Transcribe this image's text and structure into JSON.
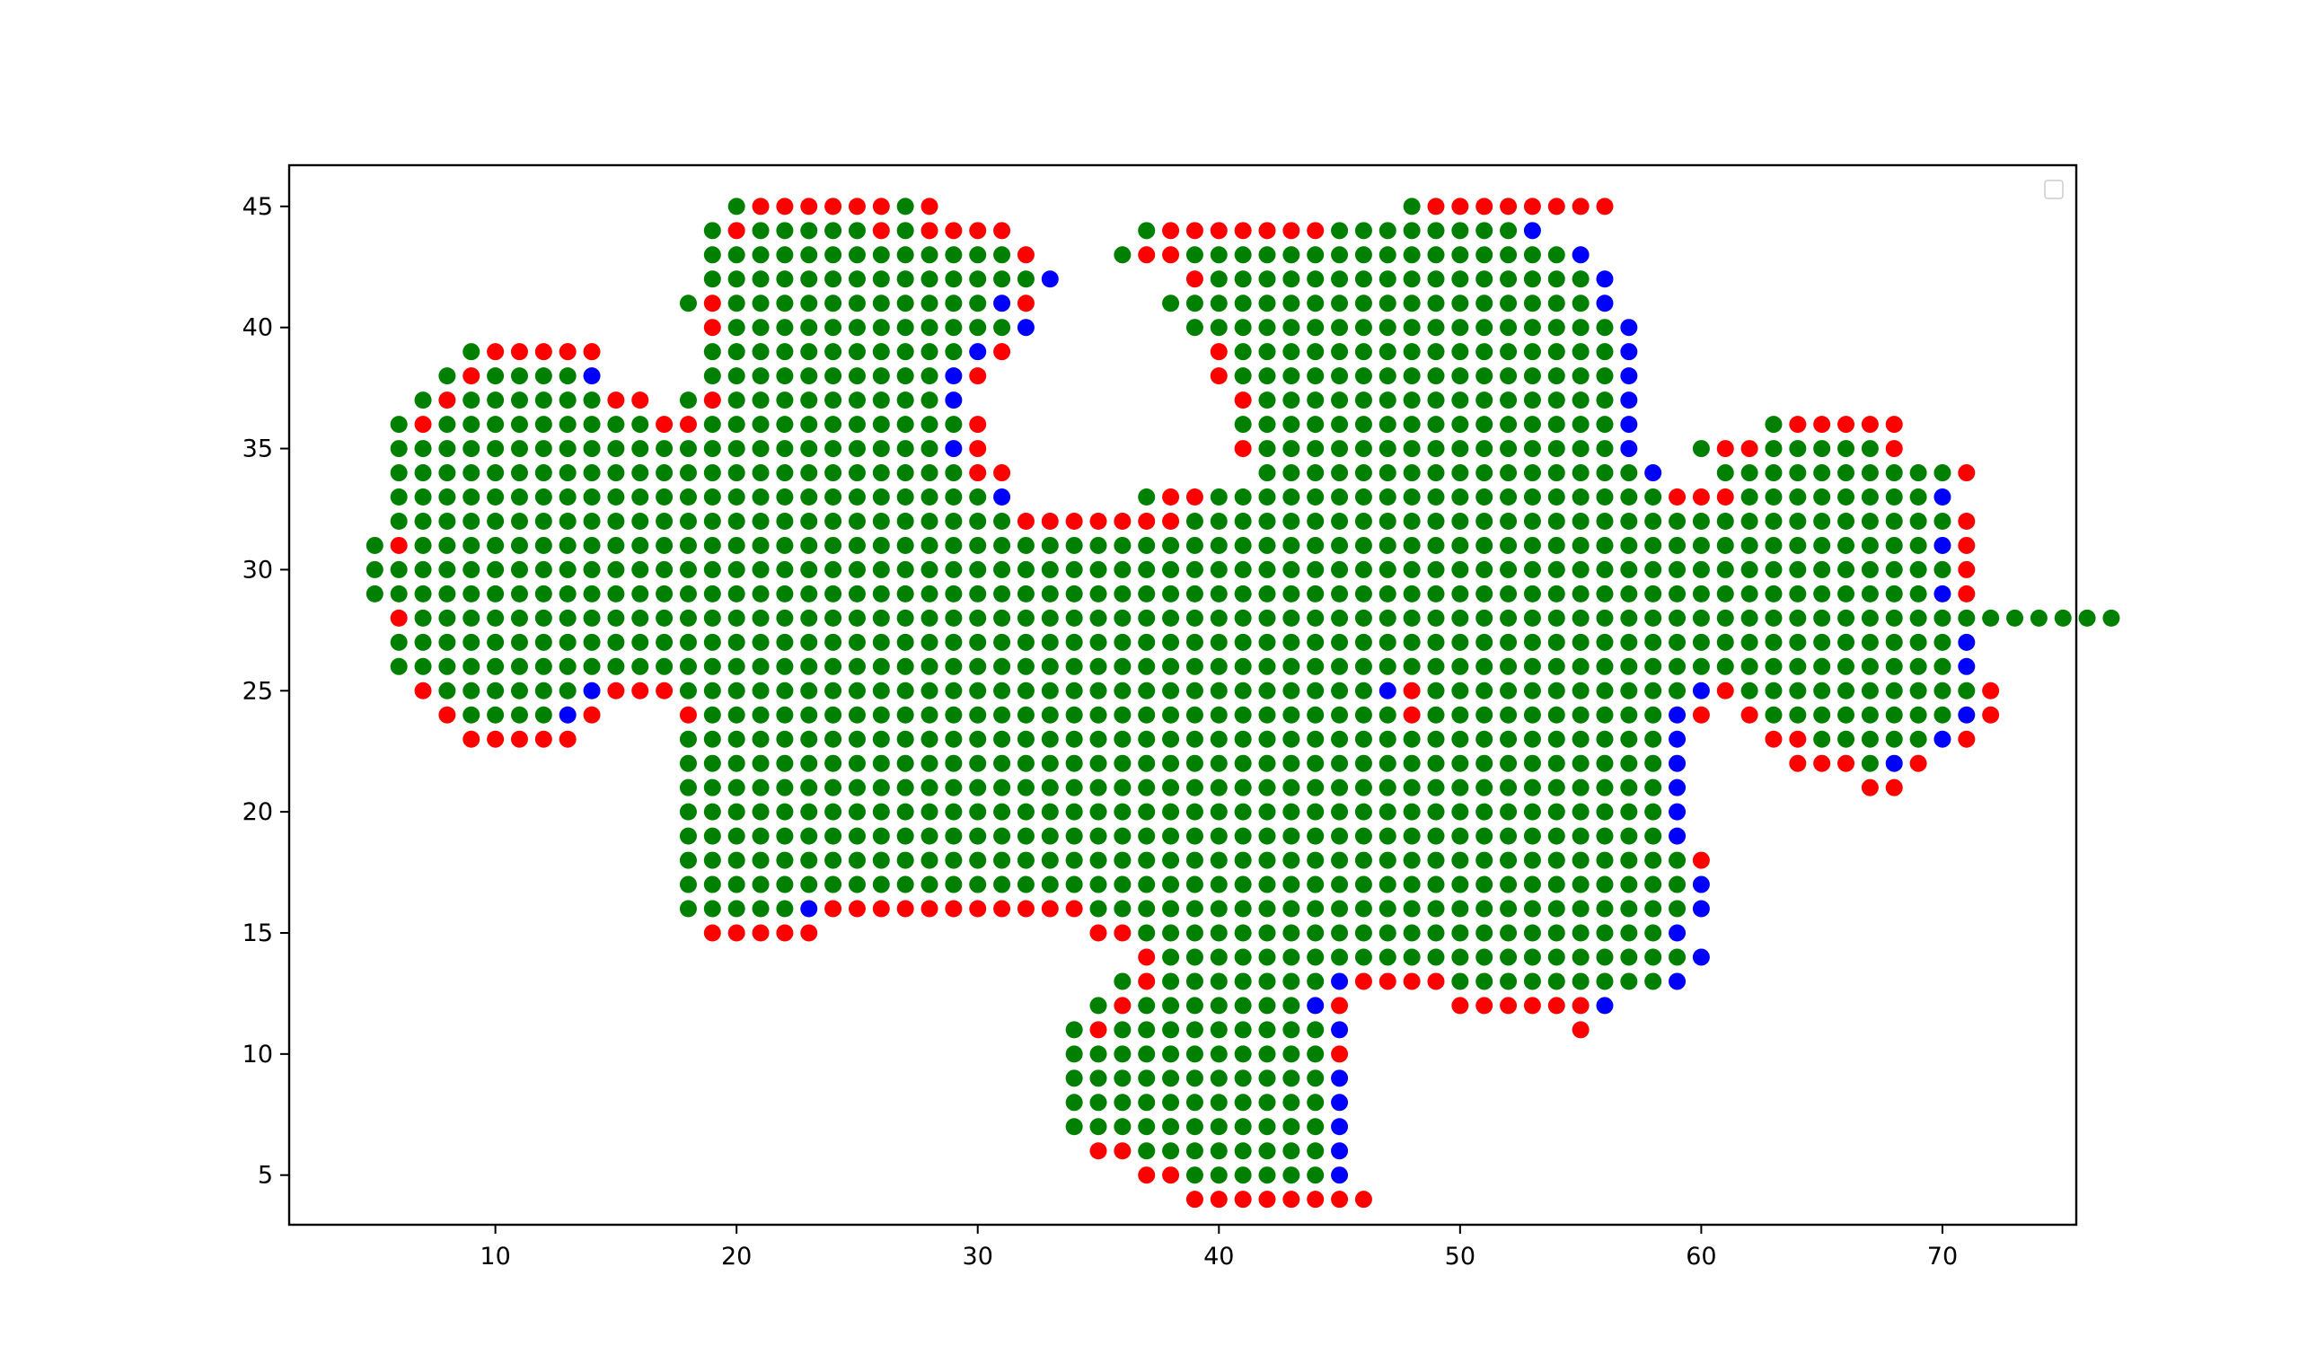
{
  "chart_data": {
    "type": "scatter",
    "title": "",
    "xlabel": "",
    "ylabel": "",
    "xlim": [
      1.45,
      75.55
    ],
    "ylim": [
      2.95,
      46.7
    ],
    "xticks": [
      10,
      20,
      30,
      40,
      50,
      60,
      70
    ],
    "yticks": [
      5,
      10,
      15,
      20,
      25,
      30,
      35,
      40,
      45
    ],
    "grid": false,
    "legend": {
      "placement": "top-right",
      "entries": []
    },
    "colors": {
      "G": "#008000",
      "R": "#ff0000",
      "B": "#0000ff"
    },
    "point_encoding": "Each string is one row of the grid of points at y = row_y. The first character is x = x_start; each following character is the next integer x. G = green point, R = red point, B = blue point, '.' = no point.",
    "x_start": 5,
    "rows": [
      {
        "y": 45,
        "cells": "...............GRRRRRRGR...................GRRRRRRRR"
      },
      {
        "y": 44,
        "cells": "..............GRGGGGGRGRRRR.....GRRRRRRRGGGGGGGGB"
      },
      {
        "y": 43,
        "cells": "..............GGGGGGGGGGGGGR...GRRGGGGGGGGGGGGGGGGB"
      },
      {
        "y": 42,
        "cells": "..............GGGGGGGGGGGGGGB.....RGGGGGGGGGGGGGGGGB"
      },
      {
        "y": 41,
        "cells": ".............GRGGGGGGGGGGGBR.....GGGGGGGGGGGGGGGGGGB"
      },
      {
        "y": 40,
        "cells": "..............RGGGGGGGGGGGGB......GGGGGGGGGGGGGGGGGGB"
      },
      {
        "y": 39,
        "cells": "....GRRRRR....GGGGGGGGGGGBR........RGGGGGGGGGGGGGGGGB"
      },
      {
        "y": 38,
        "cells": "...GRGGGGB....GGGGGGGGGGBR.........RGGGGGGGGGGGGGGGGB"
      },
      {
        "y": 37,
        "cells": "..GRGGGGGGRR.GRGGGGGGGGGB...........RGGGGGGGGGGGGGGGB"
      },
      {
        "y": 36,
        "cells": ".GRGGGGGGGGGRRGGGGGGGGGGGR..........GGGGGGGGGGGGGGGGB.....GRRRRR"
      },
      {
        "y": 35,
        "cells": ".GGGGGGGGGGGGGGGGGGGGGGGBR..........RGGGGGGGGGGGGGGGB..GRRGGGGGR"
      },
      {
        "y": 34,
        "cells": ".GGGGGGGGGGGGGGGGGGGGGGGGRR..........GGGGGGGGGGGGGGGGB..GGGGGGGGGGR"
      },
      {
        "y": 33,
        "cells": ".GGGGGGGGGGGGGGGGGGGGGGGGGB.....GRRGGGGGGGGGGGGGGGGGGGRRRGGGGGGGGB"
      },
      {
        "y": 32,
        "cells": ".GGGGGGGGGGGGGGGGGGGGGGGGGGRRRRRRRGGGGGGGGGGGGGGGGGGGGGGGGGGGGGGGGR"
      },
      {
        "y": 31,
        "cells": "GRGGGGGGGGGGGGGGGGGGGGGGGGGGGGGGGGGGGGGGGGGGGGGGGGGGGGGGGGGGGGGGGBR"
      },
      {
        "y": 30,
        "cells": "GGGGGGGGGGGGGGGGGGGGGGGGGGGGGGGGGGGGGGGGGGGGGGGGGGGGGGGGGGGGGGGGGGR"
      },
      {
        "y": 29,
        "cells": "GGGGGGGGGGGGGGGGGGGGGGGGGGGGGGGGGGGGGGGGGGGGGGGGGGGGGGGGGGGGGGGGGBR"
      },
      {
        "y": 28,
        "cells": ".RGGGGGGGGGGGGGGGGGGGGGGGGGGGGGGGGGGGGGGGGGGGGGGGGGGGGGGGGGGGGGGGGGGGGGGG"
      },
      {
        "y": 27,
        "cells": ".GGGGGGGGGGGGGGGGGGGGGGGGGGGGGGGGGGGGGGGGGGGGGGGGGGGGGGGGGGGGGGGGGB"
      },
      {
        "y": 26,
        "cells": ".GGGGGGGGGGGGGGGGGGGGGGGGGGGGGGGGGGGGGGGGGGGGGGGGGGGGGGGGGGGGGGGGGB"
      },
      {
        "y": 25,
        "cells": "..RGGGGGGBRRRGGGGGGGGGGGGGGGGGGGGGGGGGGGGGBRGGGGGGGGGGGBRGGGGGGGGGGR"
      },
      {
        "y": 24,
        "cells": "...RGGGGBR...RGGGGGGGGGGGGGGGGGGGGGGGGGGGGGRGGGGGGGGGGBR.RGGGGGGGGBR"
      },
      {
        "y": 23,
        "cells": "....RRRRR....GGGGGGGGGGGGGGGGGGGGGGGGGGGGGGGGGGGGGGGGGB...RRGGGGGBR"
      },
      {
        "y": 22,
        "cells": ".............GGGGGGGGGGGGGGGGGGGGGGGGGGGGGGGGGGGGGGGGGB....RRRGBR"
      },
      {
        "y": 21,
        "cells": ".............GGGGGGGGGGGGGGGGGGGGGGGGGGGGGGGGGGGGGGGGGB.......RR"
      },
      {
        "y": 20,
        "cells": ".............GGGGGGGGGGGGGGGGGGGGGGGGGGGGGGGGGGGGGGGGGB"
      },
      {
        "y": 19,
        "cells": ".............GGGGGGGGGGGGGGGGGGGGGGGGGGGGGGGGGGGGGGGGGB"
      },
      {
        "y": 18,
        "cells": ".............GGGGGGGGGGGGGGGGGGGGGGGGGGGGGGGGGGGGGGGGGGR"
      },
      {
        "y": 17,
        "cells": ".............GGGGGGGGGGGGGGGGGGGGGGGGGGGGGGGGGGGGGGGGGGB"
      },
      {
        "y": 16,
        "cells": ".............GGGGGBRRRRRRRRRRRGGGGGGGGGGGGGGGGGGGGGGGGGB"
      },
      {
        "y": 15,
        "cells": "..............RRRRR...........RRGGGGGGGGGGGGGGGGGGGGGGB"
      },
      {
        "y": 14,
        "cells": "................................RGGGGGGGGGGGGGGGGGGGGGGB"
      },
      {
        "y": 13,
        "cells": "...............................GRGGGGGGGBRRRRGGGGGGGGGB"
      },
      {
        "y": 12,
        "cells": "..............................GRGGGGGGGBR....RRRRRRB"
      },
      {
        "y": 11,
        "cells": ".............................GRGGGGGGGGGB.........R"
      },
      {
        "y": 10,
        "cells": ".............................GGGGGGGGGGGR"
      },
      {
        "y": 9,
        "cells": ".............................GGGGGGGGGGGB"
      },
      {
        "y": 8,
        "cells": ".............................GGGGGGGGGGGB"
      },
      {
        "y": 7,
        "cells": ".............................GGGGGGGGGGGB"
      },
      {
        "y": 6,
        "cells": "..............................RRGGGGGGGGB"
      },
      {
        "y": 5,
        "cells": "................................RRGGGGGGB"
      },
      {
        "y": 4,
        "cells": "..................................RRRRRRRR"
      }
    ]
  }
}
